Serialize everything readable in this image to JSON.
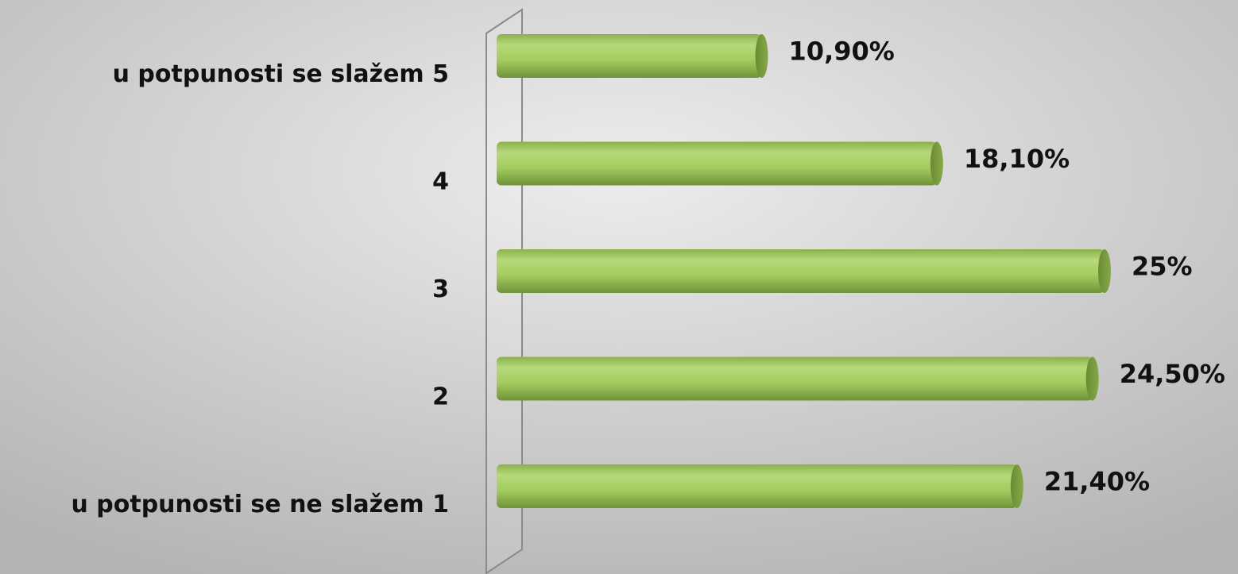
{
  "chart_data": {
    "type": "bar",
    "orientation": "horizontal",
    "categories": [
      "u potpunosti se slažem 5",
      "4",
      "3",
      "2",
      "u potpunosti se ne slažem 1"
    ],
    "values": [
      10.9,
      18.1,
      25,
      24.5,
      21.4
    ],
    "value_labels": [
      "10,90%",
      "18,10%",
      "25%",
      "24,50%",
      "21,40%"
    ],
    "color": "#a6cd62"
  }
}
